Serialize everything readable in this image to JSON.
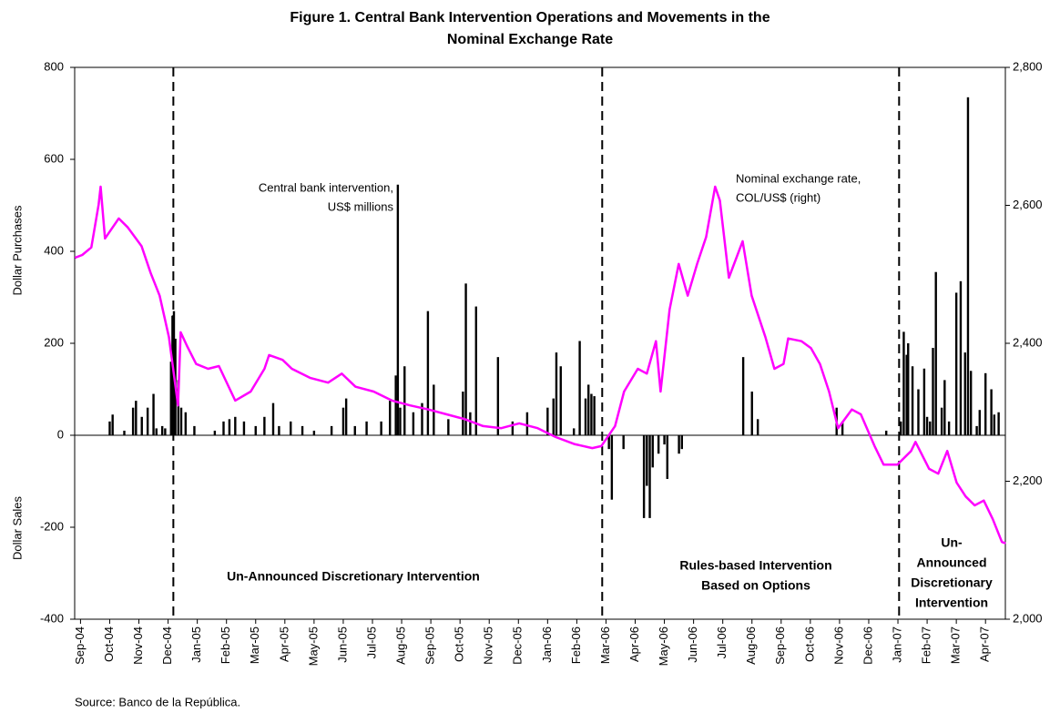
{
  "chart_data": {
    "type": "combo",
    "title": [
      "Figure 1. Central Bank Intervention Operations and Movements in the",
      "Nominal Exchange Rate"
    ],
    "ylabels": [
      "Dollar Purchases",
      "Dollar Sales"
    ],
    "source": "Source: Banco de la República.",
    "xlim": [
      -0.2,
      31.68
    ],
    "xticks": [
      {
        "value": 0,
        "label": "Sep-04"
      },
      {
        "value": 1,
        "label": "Oct-04"
      },
      {
        "value": 2,
        "label": "Nov-04"
      },
      {
        "value": 3,
        "label": "Dec-04"
      },
      {
        "value": 4,
        "label": "Jan-05"
      },
      {
        "value": 5,
        "label": "Feb-05"
      },
      {
        "value": 6,
        "label": "Mar-05"
      },
      {
        "value": 7,
        "label": "Apr-05"
      },
      {
        "value": 8,
        "label": "May-05"
      },
      {
        "value": 9,
        "label": "Jun-05"
      },
      {
        "value": 10,
        "label": "Jul-05"
      },
      {
        "value": 11,
        "label": "Aug-05"
      },
      {
        "value": 12,
        "label": "Sep-05"
      },
      {
        "value": 13,
        "label": "Oct-05"
      },
      {
        "value": 14,
        "label": "Nov-05"
      },
      {
        "value": 15,
        "label": "Dec-05"
      },
      {
        "value": 16,
        "label": "Jan-06"
      },
      {
        "value": 17,
        "label": "Feb-06"
      },
      {
        "value": 18,
        "label": "Mar-06"
      },
      {
        "value": 19,
        "label": "Apr-06"
      },
      {
        "value": 20,
        "label": "May-06"
      },
      {
        "value": 21,
        "label": "Jun-06"
      },
      {
        "value": 22,
        "label": "Jul-06"
      },
      {
        "value": 23,
        "label": "Aug-06"
      },
      {
        "value": 24,
        "label": "Sep-06"
      },
      {
        "value": 25,
        "label": "Oct-06"
      },
      {
        "value": 26,
        "label": "Nov-06"
      },
      {
        "value": 27,
        "label": "Dec-06"
      },
      {
        "value": 28,
        "label": "Jan-07"
      },
      {
        "value": 29,
        "label": "Feb-07"
      },
      {
        "value": 30,
        "label": "Mar-07"
      },
      {
        "value": 31,
        "label": "Apr-07"
      }
    ],
    "ylim": [
      -400,
      800
    ],
    "yticks": [
      -400,
      -200,
      0,
      200,
      400,
      600,
      800
    ],
    "y2lim": [
      2000,
      2800
    ],
    "y2ticks": [
      {
        "value": 2000,
        "label": "2,000"
      },
      {
        "value": 2200,
        "label": "2,200"
      },
      {
        "value": 2400,
        "label": "2,400"
      },
      {
        "value": 2600,
        "label": "2,600"
      },
      {
        "value": 2800,
        "label": "2,800"
      }
    ],
    "dividers": [
      3.18,
      17.87,
      28.04
    ],
    "annotations": [
      {
        "text": [
          "Un-Announced Discretionary Intervention"
        ]
      },
      {
        "text": [
          "Rules-based Intervention",
          "Based on Options"
        ]
      },
      {
        "text": [
          "Un-",
          "Announced",
          "Discretionary",
          "Intervention"
        ]
      },
      {
        "text": [
          "Central bank intervention,",
          "US$ millions"
        ]
      },
      {
        "text": [
          "Nominal exchange rate,",
          "COL/US$ (right)"
        ]
      }
    ],
    "series": [
      {
        "type": "bar",
        "color": "#000000",
        "x": [
          1.0,
          1.1,
          1.5,
          1.8,
          1.9,
          2.1,
          2.3,
          2.5,
          2.6,
          2.8,
          2.9,
          3.1,
          3.15,
          3.2,
          3.25,
          3.35,
          3.45,
          3.6,
          3.9,
          4.6,
          4.9,
          5.1,
          5.3,
          5.6,
          6.0,
          6.3,
          6.6,
          6.8,
          7.2,
          7.6,
          8.0,
          8.6,
          9.0,
          9.1,
          9.4,
          9.8,
          10.3,
          10.6,
          10.8,
          10.87,
          10.95,
          11.1,
          11.4,
          11.7,
          11.9,
          12.1,
          12.6,
          13.1,
          13.2,
          13.35,
          13.55,
          14.3,
          14.8,
          15.3,
          16.0,
          16.2,
          16.3,
          16.45,
          16.9,
          17.1,
          17.3,
          17.4,
          17.5,
          17.6,
          18.1,
          18.2,
          18.6,
          19.3,
          19.4,
          19.5,
          19.6,
          19.8,
          20.0,
          20.1,
          20.5,
          20.6,
          22.7,
          23.0,
          23.2,
          25.9,
          26.1,
          27.6,
          28.1,
          28.2,
          28.3,
          28.35,
          28.5,
          28.7,
          28.9,
          29.0,
          29.1,
          29.2,
          29.3,
          29.5,
          29.6,
          29.75,
          30.0,
          30.15,
          30.3,
          30.4,
          30.5,
          30.7,
          30.8,
          31.0,
          31.2,
          31.3,
          31.45
        ],
        "values": [
          30,
          45,
          10,
          60,
          75,
          40,
          60,
          90,
          15,
          20,
          15,
          160,
          260,
          270,
          210,
          120,
          60,
          50,
          20,
          10,
          30,
          35,
          40,
          30,
          20,
          40,
          70,
          20,
          30,
          20,
          10,
          20,
          60,
          80,
          20,
          30,
          30,
          75,
          130,
          545,
          60,
          150,
          50,
          70,
          270,
          110,
          35,
          95,
          330,
          50,
          280,
          170,
          30,
          50,
          60,
          80,
          180,
          150,
          15,
          205,
          80,
          110,
          90,
          85,
          -30,
          -140,
          -30,
          -180,
          -110,
          -180,
          -70,
          -40,
          -20,
          -95,
          -40,
          -30,
          170,
          95,
          35,
          60,
          30,
          10,
          30,
          225,
          175,
          200,
          150,
          100,
          145,
          40,
          30,
          190,
          355,
          60,
          120,
          30,
          310,
          335,
          180,
          735,
          140,
          20,
          55,
          135,
          100,
          45,
          50
        ]
      },
      {
        "type": "line",
        "axis": "y2",
        "color": "#ff00ff",
        "x": [
          -0.19,
          0.06,
          0.37,
          0.62,
          0.69,
          0.84,
          1.31,
          1.62,
          2.09,
          2.4,
          2.71,
          3.03,
          3.34,
          3.43,
          3.65,
          3.96,
          4.37,
          4.74,
          5.3,
          5.83,
          6.3,
          6.46,
          6.92,
          7.24,
          7.86,
          8.48,
          8.95,
          9.42,
          10.04,
          10.67,
          11.29,
          11.92,
          12.54,
          13.16,
          13.79,
          14.41,
          15.03,
          15.66,
          16.28,
          16.91,
          17.53,
          17.84,
          18.31,
          18.62,
          19.09,
          19.4,
          19.71,
          19.87,
          20.18,
          20.49,
          20.8,
          21.12,
          21.43,
          21.74,
          21.9,
          22.21,
          22.68,
          22.99,
          23.46,
          23.77,
          24.08,
          24.24,
          24.7,
          25.02,
          25.33,
          25.64,
          25.95,
          26.42,
          26.73,
          27.2,
          27.51,
          27.98,
          28.45,
          28.6,
          29.07,
          29.38,
          29.69,
          30.01,
          30.32,
          30.63,
          30.94,
          31.25,
          31.56,
          31.69
        ],
        "values": [
          2524,
          2528,
          2539,
          2601,
          2627,
          2552,
          2581,
          2568,
          2541,
          2502,
          2469,
          2409,
          2310,
          2416,
          2396,
          2370,
          2363,
          2367,
          2317,
          2330,
          2363,
          2383,
          2376,
          2363,
          2350,
          2343,
          2356,
          2337,
          2330,
          2317,
          2310,
          2304,
          2297,
          2290,
          2280,
          2277,
          2284,
          2277,
          2264,
          2254,
          2248,
          2251,
          2280,
          2330,
          2363,
          2356,
          2403,
          2330,
          2449,
          2515,
          2469,
          2515,
          2554,
          2627,
          2607,
          2495,
          2548,
          2469,
          2409,
          2363,
          2370,
          2407,
          2403,
          2393,
          2370,
          2330,
          2277,
          2304,
          2297,
          2251,
          2224,
          2224,
          2244,
          2257,
          2218,
          2211,
          2244,
          2198,
          2178,
          2165,
          2172,
          2145,
          2112,
          2110
        ]
      }
    ]
  }
}
